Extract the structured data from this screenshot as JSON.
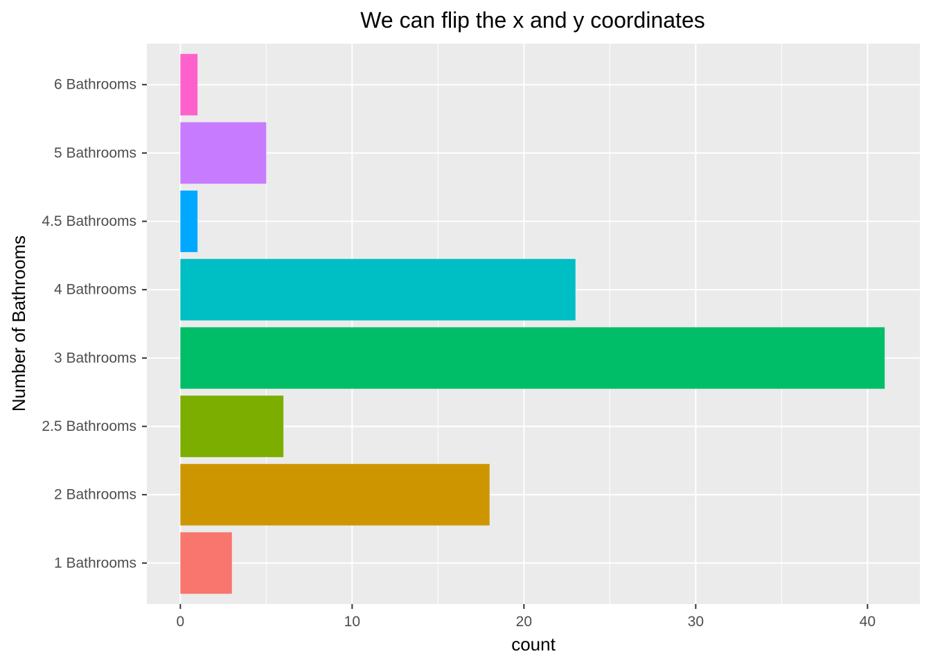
{
  "chart_data": {
    "type": "bar",
    "orientation": "horizontal",
    "title": "We can flip the x and y coordinates",
    "xlabel": "count",
    "ylabel": "Number of Bathrooms",
    "categories": [
      "1 Bathrooms",
      "2 Bathrooms",
      "2.5 Bathrooms",
      "3 Bathrooms",
      "4 Bathrooms",
      "4.5 Bathrooms",
      "5 Bathrooms",
      "6 Bathrooms"
    ],
    "values": [
      3,
      18,
      6,
      41,
      23,
      1,
      5,
      1
    ],
    "colors": [
      "#F8766D",
      "#CD9600",
      "#7CAE00",
      "#00BE67",
      "#00BFC4",
      "#00A9FF",
      "#C77CFF",
      "#FF61CC"
    ],
    "xlim": [
      -1.95,
      43.05
    ],
    "xticks": [
      0,
      10,
      20,
      30,
      40
    ],
    "grid": true,
    "legend": "none",
    "panel_background": "#EBEBEB",
    "grid_color": "#FFFFFF"
  }
}
